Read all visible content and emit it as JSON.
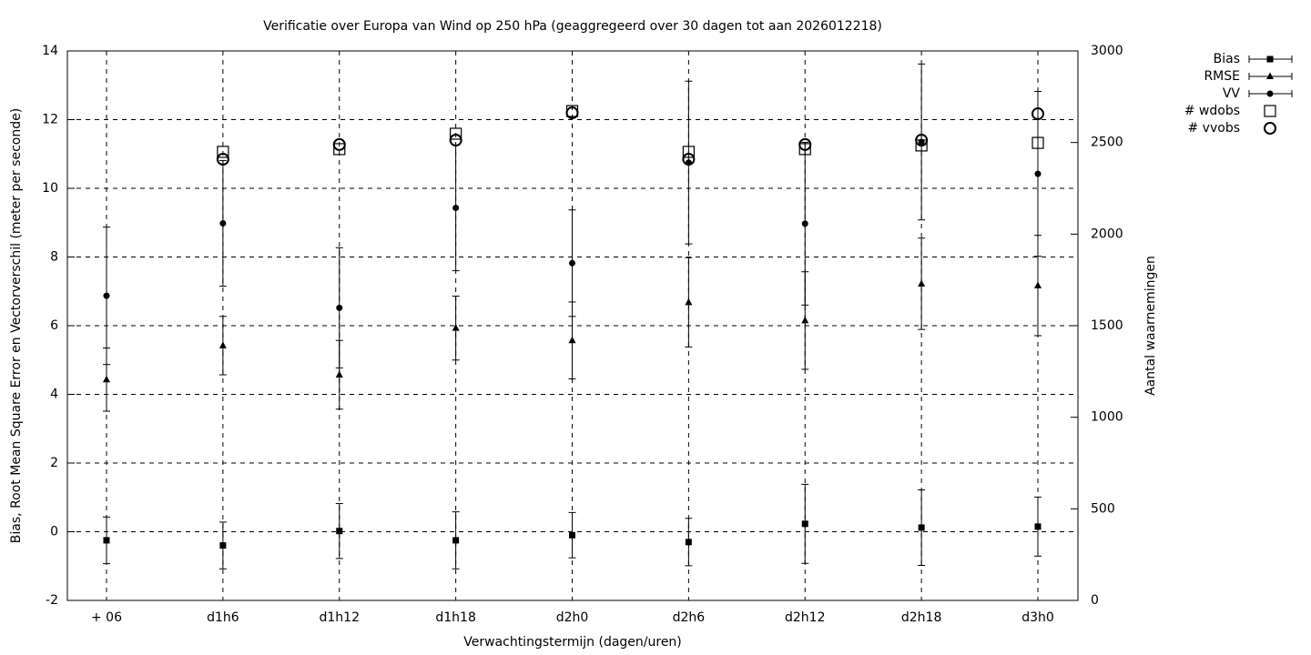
{
  "chart_data": {
    "type": "errorbar",
    "title": "Verificatie over Europa van Wind op 250 hPa (geaggregeerd over 30 dagen tot aan 2026012218)",
    "xlabel": "Verwachtingstermijn (dagen/uren)",
    "ylabel": "Bias, Root Mean Square Error en Vectorverschil (meter per seconde)",
    "y2label": "Aantal waarnemingen",
    "categories": [
      "+ 06",
      "d1h6",
      "d1h12",
      "d1h18",
      "d2h0",
      "d2h6",
      "d2h12",
      "d2h18",
      "d3h0"
    ],
    "ylim": [
      -2,
      14
    ],
    "yticks": [
      -2,
      0,
      2,
      4,
      6,
      8,
      10,
      12,
      14
    ],
    "y2lim": [
      0,
      3000
    ],
    "y2ticks": [
      0,
      500,
      1000,
      1500,
      2000,
      2500,
      3000
    ],
    "grid": true,
    "legend": "top-right-outside",
    "series": [
      {
        "name": "Bias",
        "color": "#000000",
        "marker": "square",
        "values": [
          -0.25,
          -0.4,
          0.02,
          -0.25,
          -0.1,
          -0.3,
          0.23,
          0.12,
          0.15
        ],
        "errors": [
          0.68,
          0.68,
          0.8,
          0.83,
          0.66,
          0.69,
          1.15,
          1.1,
          0.86
        ]
      },
      {
        "name": "RMSE",
        "color": "#000000",
        "marker": "triangle",
        "values": [
          4.43,
          5.42,
          4.57,
          5.93,
          5.57,
          6.68,
          6.15,
          7.22,
          7.17
        ],
        "errors": [
          0.92,
          0.85,
          1.0,
          0.93,
          1.12,
          1.3,
          1.42,
          1.33,
          1.46
        ]
      },
      {
        "name": "VV",
        "color": "#000000",
        "marker": "dot",
        "values": [
          6.87,
          8.98,
          6.52,
          9.43,
          7.82,
          10.75,
          8.97,
          11.35,
          10.42
        ],
        "errors": [
          2.0,
          1.83,
          1.75,
          1.83,
          1.55,
          2.37,
          2.37,
          2.27,
          2.4
        ]
      },
      {
        "name": "# wdobs",
        "color": "#000000",
        "marker": "open-square",
        "axis": "y2",
        "values": [
          null,
          2449,
          2464,
          2548,
          2672,
          2449,
          2464,
          2484,
          2498
        ]
      },
      {
        "name": "# vvobs",
        "color": "#000000",
        "marker": "open-circle",
        "axis": "y2",
        "values": [
          null,
          2409,
          2489,
          2513,
          2662,
          2409,
          2489,
          2513,
          2657
        ]
      }
    ]
  }
}
